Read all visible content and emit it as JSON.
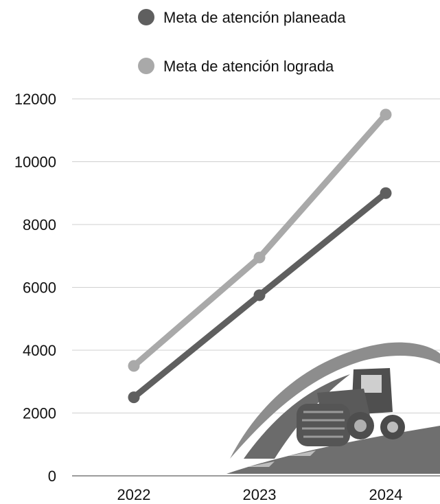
{
  "chart_data": {
    "type": "line",
    "title": "",
    "xlabel": "",
    "ylabel": "",
    "categories": [
      "2022",
      "2023",
      "2024"
    ],
    "ylim": [
      0,
      12000
    ],
    "yticks": [
      "0",
      "2000",
      "4000",
      "6000",
      "8000",
      "10000",
      "12000"
    ],
    "grid": true,
    "legend_position": "top-center",
    "series": [
      {
        "name": "Meta de atención planeada",
        "values": [
          2500,
          5750,
          9000
        ],
        "color": "#5f5f5f"
      },
      {
        "name": "Meta de atención lograda",
        "values": [
          3500,
          6950,
          11500
        ],
        "color": "#a9a9a9"
      }
    ],
    "watermark": "road-roller-logo"
  }
}
